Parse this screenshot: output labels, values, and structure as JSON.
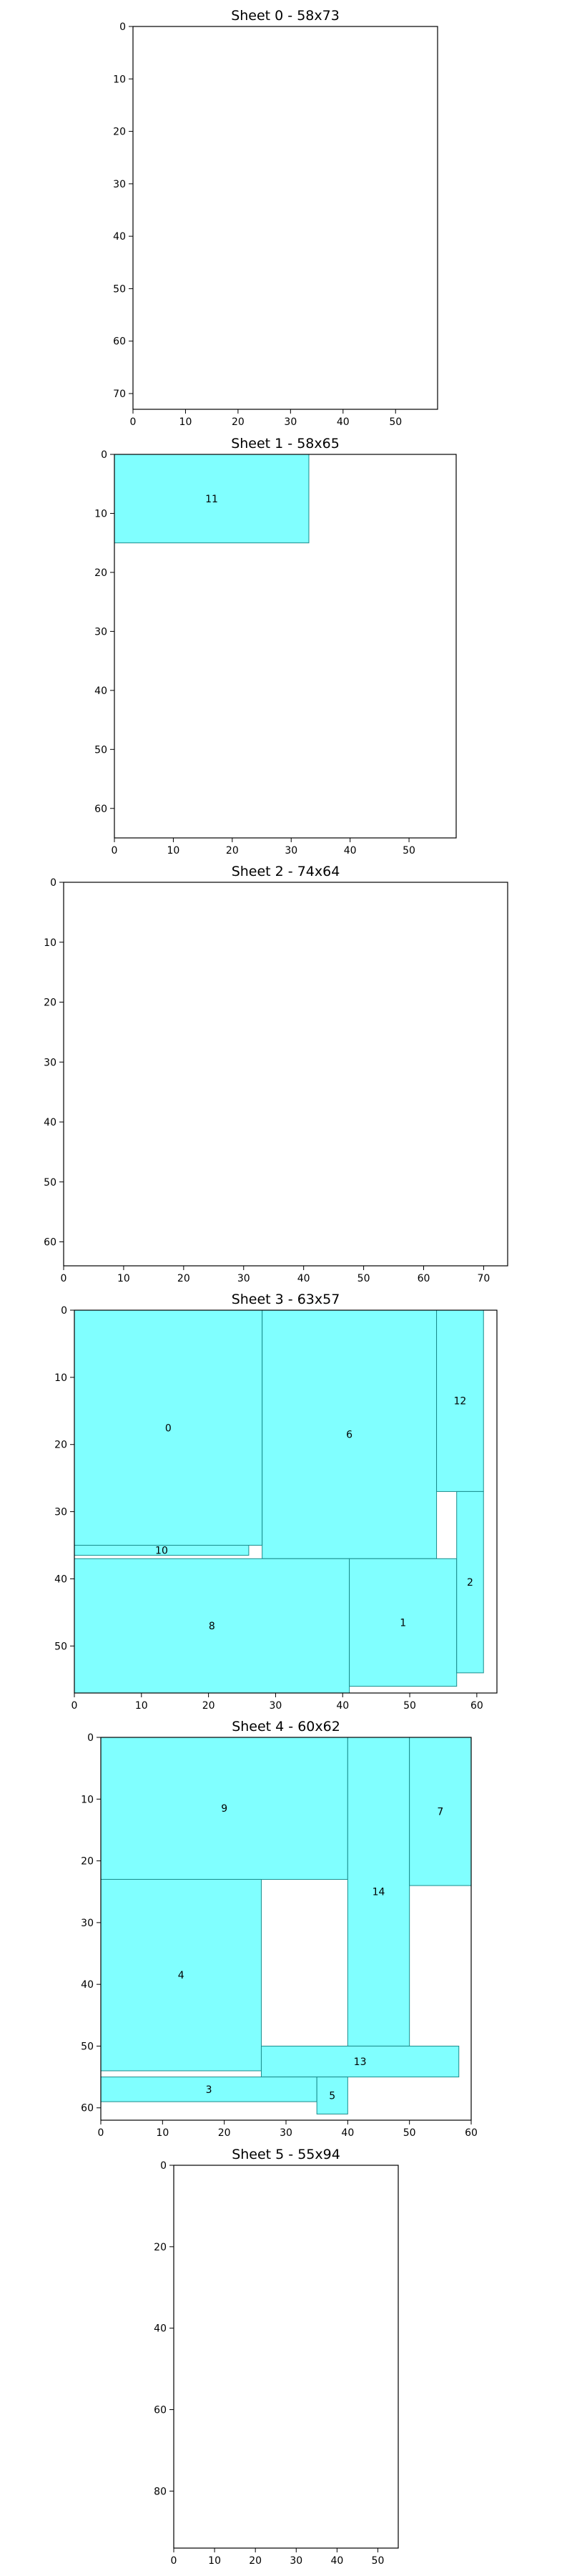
{
  "colors": {
    "piece_fill": "#80ffff",
    "piece_stroke": "#1a8c8c",
    "frame": "#000000"
  },
  "chart_data": [
    {
      "type": "rectangles",
      "title": "Sheet 0 - 58x73",
      "xlim": [
        0,
        58
      ],
      "ylim": [
        0,
        73
      ],
      "y_inverted": true,
      "xticks": [
        0,
        10,
        20,
        30,
        40,
        50
      ],
      "yticks": [
        0,
        10,
        20,
        30,
        40,
        50,
        60,
        70
      ],
      "pieces": []
    },
    {
      "type": "rectangles",
      "title": "Sheet 1 - 58x65",
      "xlim": [
        0,
        58
      ],
      "ylim": [
        0,
        65
      ],
      "y_inverted": true,
      "xticks": [
        0,
        10,
        20,
        30,
        40,
        50
      ],
      "yticks": [
        0,
        10,
        20,
        30,
        40,
        50,
        60
      ],
      "pieces": [
        {
          "label": "11",
          "x": 0,
          "y": 0,
          "w": 33,
          "h": 15
        }
      ]
    },
    {
      "type": "rectangles",
      "title": "Sheet 2 - 74x64",
      "xlim": [
        0,
        74
      ],
      "ylim": [
        0,
        64
      ],
      "y_inverted": true,
      "xticks": [
        0,
        10,
        20,
        30,
        40,
        50,
        60,
        70
      ],
      "yticks": [
        0,
        10,
        20,
        30,
        40,
        50,
        60
      ],
      "pieces": []
    },
    {
      "type": "rectangles",
      "title": "Sheet 3 - 63x57",
      "xlim": [
        0,
        63
      ],
      "ylim": [
        0,
        57
      ],
      "y_inverted": true,
      "xticks": [
        0,
        10,
        20,
        30,
        40,
        50,
        60
      ],
      "yticks": [
        0,
        10,
        20,
        30,
        40,
        50
      ],
      "pieces": [
        {
          "label": "0",
          "x": 0,
          "y": 0,
          "w": 28,
          "h": 35
        },
        {
          "label": "6",
          "x": 28,
          "y": 0,
          "w": 26,
          "h": 37
        },
        {
          "label": "12",
          "x": 54,
          "y": 0,
          "w": 7,
          "h": 27
        },
        {
          "label": "10",
          "x": 0,
          "y": 35,
          "w": 26,
          "h": 1.5
        },
        {
          "label": "8",
          "x": 0,
          "y": 37,
          "w": 41,
          "h": 20
        },
        {
          "label": "1",
          "x": 41,
          "y": 37,
          "w": 16,
          "h": 19
        },
        {
          "label": "2",
          "x": 57,
          "y": 27,
          "w": 4,
          "h": 27
        }
      ]
    },
    {
      "type": "rectangles",
      "title": "Sheet 4 - 60x62",
      "xlim": [
        0,
        60
      ],
      "ylim": [
        0,
        62
      ],
      "y_inverted": true,
      "xticks": [
        0,
        10,
        20,
        30,
        40,
        50,
        60
      ],
      "yticks": [
        0,
        10,
        20,
        30,
        40,
        50,
        60
      ],
      "pieces": [
        {
          "label": "9",
          "x": 0,
          "y": 0,
          "w": 40,
          "h": 23
        },
        {
          "label": "14",
          "x": 40,
          "y": 0,
          "w": 10,
          "h": 50
        },
        {
          "label": "7",
          "x": 50,
          "y": 0,
          "w": 10,
          "h": 24
        },
        {
          "label": "4",
          "x": 0,
          "y": 23,
          "w": 26,
          "h": 31
        },
        {
          "label": "13",
          "x": 26,
          "y": 50,
          "w": 32,
          "h": 5
        },
        {
          "label": "3",
          "x": 0,
          "y": 55,
          "w": 35,
          "h": 4
        },
        {
          "label": "5",
          "x": 35,
          "y": 55,
          "w": 5,
          "h": 6
        }
      ]
    },
    {
      "type": "rectangles",
      "title": "Sheet 5 - 55x94",
      "xlim": [
        0,
        55
      ],
      "ylim": [
        0,
        94
      ],
      "y_inverted": true,
      "xticks": [
        0,
        10,
        20,
        30,
        40,
        50
      ],
      "yticks": [
        0,
        20,
        40,
        60,
        80
      ],
      "pieces": []
    }
  ]
}
